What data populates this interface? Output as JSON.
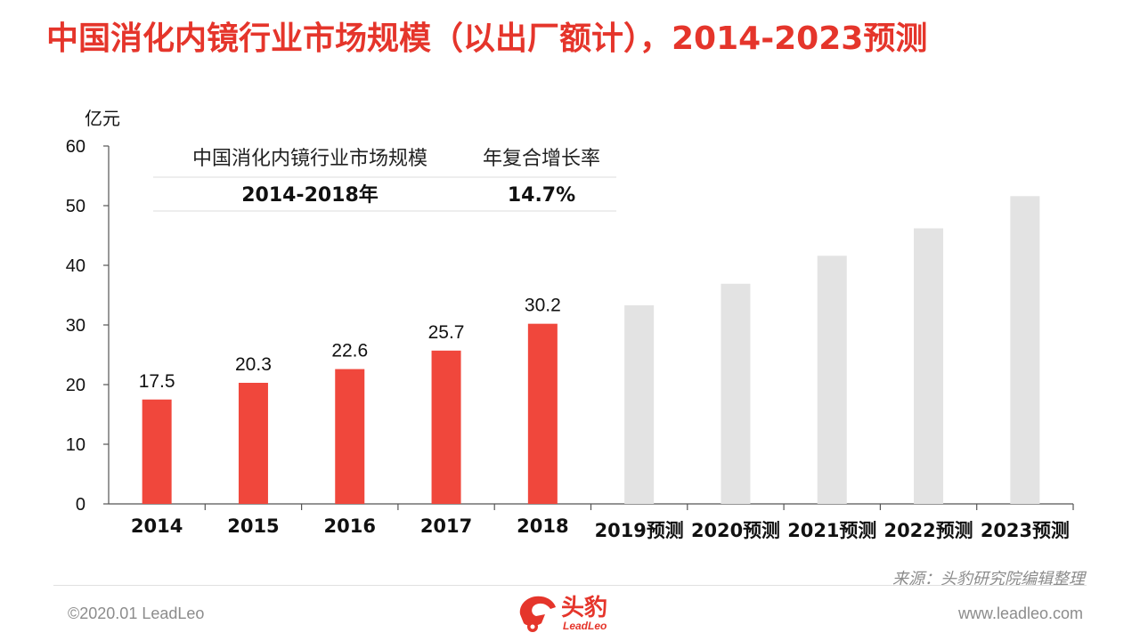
{
  "title": "中国消化内镜行业市场规模（以出厂额计），2014-2023预测",
  "chart_data": {
    "type": "bar",
    "categories": [
      "2014",
      "2015",
      "2016",
      "2017",
      "2018",
      "2019预测",
      "2020预测",
      "2021预测",
      "2022预测",
      "2023预测"
    ],
    "values": [
      17.5,
      20.3,
      22.6,
      25.7,
      30.2,
      33.3,
      36.9,
      41.6,
      46.2,
      51.6
    ],
    "labels": [
      "17.5",
      "20.3",
      "22.6",
      "25.7",
      "30.2",
      "",
      "",
      "",
      "",
      ""
    ],
    "unit": "亿元",
    "ylim": [
      0,
      60
    ],
    "yticks": [
      0,
      10,
      20,
      30,
      40,
      50,
      60
    ],
    "grid": false,
    "colors": {
      "actual": "#f0473c",
      "forecast": "#e3e3e3"
    }
  },
  "cagr_table": {
    "header_left": "中国消化内镜行业市场规模",
    "header_right": "年复合增长率",
    "period": "2014-2018年",
    "rate": "14.7%"
  },
  "source": "来源：头豹研究院编辑整理",
  "copyright": "©2020.01 LeadLeo",
  "website": "www.leadleo.com",
  "logo": {
    "text": "头豹",
    "sub": "LeadLeo",
    "color": "#e5352b"
  }
}
